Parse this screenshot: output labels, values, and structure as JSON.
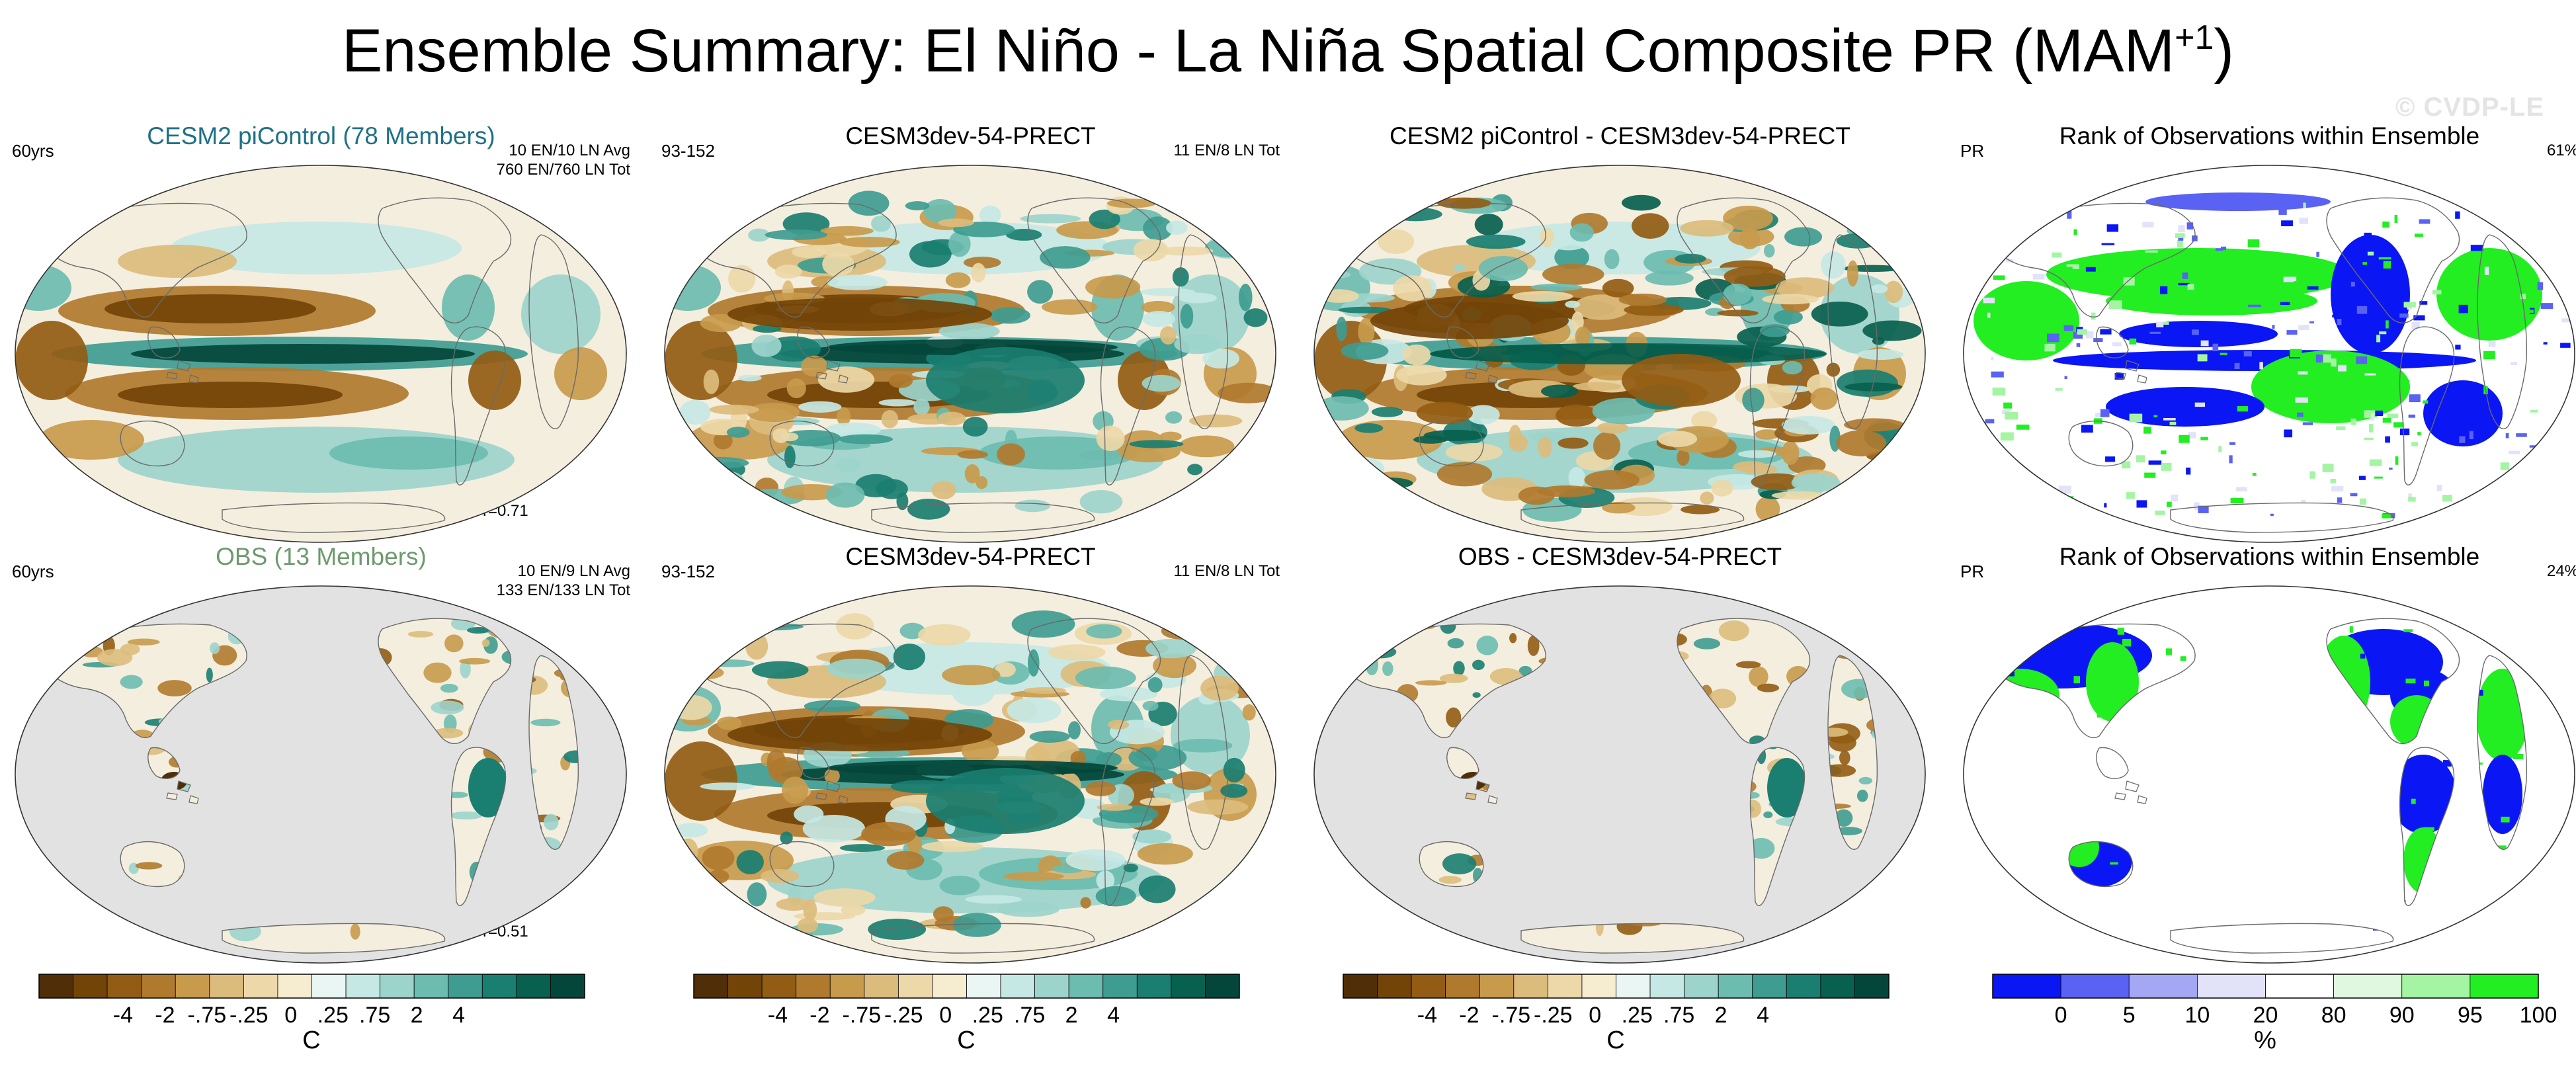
{
  "figure": {
    "title_main": "Ensemble Summary: El Niño - La Niña Spatial Composite PR (MAM",
    "title_sup": "+1",
    "title_close": ")",
    "watermark": "© CVDP-LE"
  },
  "panels": [
    {
      "id": "p1",
      "title": "CESM2 piControl (78 Members)",
      "title_color": "#1f7187",
      "label_left": "60yrs",
      "label_right_1": "10 EN/10 LN Avg",
      "label_right_2": "760 EN/760 LN Tot",
      "label_bottom": "r=0.71",
      "fill": "composite-full",
      "ocean": "#f4eede"
    },
    {
      "id": "p2",
      "title": "CESM3dev-54-PRECT",
      "title_color": "#000000",
      "label_left": "93-152",
      "label_right_1": "11 EN/8 LN Tot",
      "label_right_2": "",
      "label_bottom": "",
      "fill": "composite-noisy",
      "ocean": "#f4eede"
    },
    {
      "id": "p3",
      "title": "CESM2 piControl - CESM3dev-54-PRECT",
      "title_color": "#000000",
      "label_left": "",
      "label_right_1": "",
      "label_right_2": "",
      "label_bottom": "",
      "fill": "difference",
      "ocean": "#f4eede"
    },
    {
      "id": "p4",
      "title": "Rank of Observations within Ensemble",
      "title_color": "#000000",
      "label_left": "PR",
      "label_right_1": "61%",
      "label_right_2": "",
      "label_bottom": "",
      "fill": "rank-full",
      "ocean": "#ffffff"
    },
    {
      "id": "p5",
      "title": "OBS (13 Members)",
      "title_color": "#6e9a6e",
      "label_left": "60yrs",
      "label_right_1": "10 EN/9 LN Avg",
      "label_right_2": "133 EN/133 LN Tot",
      "label_bottom": "r=0.51",
      "fill": "obs-land",
      "ocean": "#e2e2e2"
    },
    {
      "id": "p6",
      "title": "CESM3dev-54-PRECT",
      "title_color": "#000000",
      "label_left": "93-152",
      "label_right_1": "11 EN/8 LN Tot",
      "label_right_2": "",
      "label_bottom": "",
      "fill": "composite-noisy",
      "ocean": "#f4eede"
    },
    {
      "id": "p7",
      "title": "OBS - CESM3dev-54-PRECT",
      "title_color": "#000000",
      "label_left": "",
      "label_right_1": "",
      "label_right_2": "",
      "label_bottom": "",
      "fill": "obs-diff-land",
      "ocean": "#e2e2e2"
    },
    {
      "id": "p8",
      "title": "Rank of Observations within Ensemble",
      "title_color": "#000000",
      "label_left": "PR",
      "label_right_1": "24%",
      "label_right_2": "",
      "label_bottom": "",
      "fill": "rank-land",
      "ocean": "#ffffff"
    }
  ],
  "colorbars": [
    {
      "id": "cb1",
      "unit": "C",
      "ticks": [
        "-4",
        "-2",
        "-.75",
        "-.25",
        "0",
        ".25",
        ".75",
        "2",
        "4"
      ],
      "colors": [
        "#4f2e08",
        "#734408",
        "#925c14",
        "#b07a2e",
        "#c89a4c",
        "#dcbc7c",
        "#ecd8a8",
        "#f6ecd0",
        "#eaf6f4",
        "#c6e8e4",
        "#9cd4cc",
        "#6cbcb0",
        "#3e9c90",
        "#1a7e70",
        "#08604e",
        "#04463a"
      ]
    },
    {
      "id": "cb2",
      "unit": "C",
      "ticks": [
        "-4",
        "-2",
        "-.75",
        "-.25",
        "0",
        ".25",
        ".75",
        "2",
        "4"
      ],
      "colors": [
        "#4f2e08",
        "#734408",
        "#925c14",
        "#b07a2e",
        "#c89a4c",
        "#dcbc7c",
        "#ecd8a8",
        "#f6ecd0",
        "#eaf6f4",
        "#c6e8e4",
        "#9cd4cc",
        "#6cbcb0",
        "#3e9c90",
        "#1a7e70",
        "#08604e",
        "#04463a"
      ]
    },
    {
      "id": "cb3",
      "unit": "C",
      "ticks": [
        "-4",
        "-2",
        "-.75",
        "-.25",
        "0",
        ".25",
        ".75",
        "2",
        "4"
      ],
      "colors": [
        "#4f2e08",
        "#734408",
        "#925c14",
        "#b07a2e",
        "#c89a4c",
        "#dcbc7c",
        "#ecd8a8",
        "#f6ecd0",
        "#eaf6f4",
        "#c6e8e4",
        "#9cd4cc",
        "#6cbcb0",
        "#3e9c90",
        "#1a7e70",
        "#08604e",
        "#04463a"
      ]
    },
    {
      "id": "cb4",
      "unit": "%",
      "ticks": [
        "0",
        "5",
        "10",
        "20",
        "80",
        "90",
        "95",
        "100"
      ],
      "colors": [
        "#0a16f4",
        "#5a62f4",
        "#a4a8f4",
        "#e2e2f8",
        "#ffffff",
        "#e0f8e0",
        "#a4f4a4",
        "#22ee22"
      ]
    }
  ]
}
